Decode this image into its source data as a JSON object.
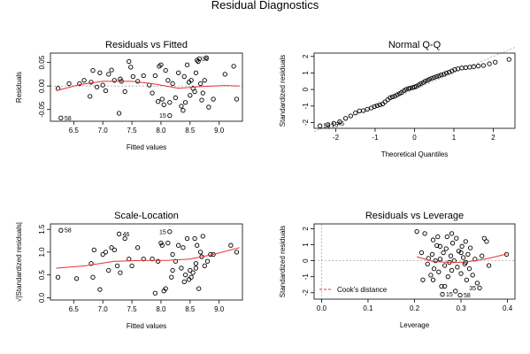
{
  "main_title": "Residual Diagnostics",
  "chart_data": [
    {
      "id": "rvf",
      "type": "scatter",
      "title": "Residuals vs Fitted",
      "xlabel": "Fitted values",
      "ylabel": "Residuals",
      "xlim": [
        6.1,
        9.4
      ],
      "ylim": [
        -0.075,
        0.07
      ],
      "xticks": [
        6.5,
        7.0,
        7.5,
        8.0,
        8.5,
        9.0
      ],
      "xtick_labels": [
        "6.5",
        "7.0",
        "7.5",
        "8.0",
        "8.5",
        "9.0"
      ],
      "yticks": [
        -0.05,
        0.0,
        0.05
      ],
      "ytick_labels": [
        "-0.05",
        "0.00",
        "0.05"
      ],
      "points": [
        [
          6.23,
          -0.005
        ],
        [
          6.42,
          0.005
        ],
        [
          6.6,
          0.005
        ],
        [
          6.68,
          0.012
        ],
        [
          6.78,
          -0.022
        ],
        [
          6.8,
          0.008
        ],
        [
          6.83,
          0.033
        ],
        [
          6.9,
          -0.002
        ],
        [
          6.95,
          0.028
        ],
        [
          7.0,
          0.002
        ],
        [
          7.05,
          -0.01
        ],
        [
          7.1,
          0.025
        ],
        [
          7.15,
          0.034
        ],
        [
          7.2,
          0.012
        ],
        [
          7.28,
          -0.058
        ],
        [
          7.3,
          0.015
        ],
        [
          7.32,
          0.01
        ],
        [
          7.38,
          -0.012
        ],
        [
          7.45,
          0.052
        ],
        [
          7.48,
          0.04
        ],
        [
          7.52,
          0.02
        ],
        [
          7.6,
          0.01
        ],
        [
          7.7,
          0.022
        ],
        [
          7.8,
          0.002
        ],
        [
          7.85,
          -0.015
        ],
        [
          7.9,
          0.022
        ],
        [
          7.95,
          -0.033
        ],
        [
          7.97,
          0.042
        ],
        [
          8.0,
          0.045
        ],
        [
          8.02,
          -0.028
        ],
        [
          8.05,
          -0.04
        ],
        [
          8.08,
          0.033
        ],
        [
          8.12,
          0.012
        ],
        [
          8.15,
          -0.035
        ],
        [
          8.2,
          0.005
        ],
        [
          8.25,
          -0.025
        ],
        [
          8.3,
          0.028
        ],
        [
          8.35,
          -0.043
        ],
        [
          8.38,
          -0.052
        ],
        [
          8.4,
          0.02
        ],
        [
          8.42,
          -0.035
        ],
        [
          8.45,
          0.045
        ],
        [
          8.48,
          0.008
        ],
        [
          8.5,
          -0.02
        ],
        [
          8.52,
          0.012
        ],
        [
          8.55,
          -0.005
        ],
        [
          8.58,
          -0.012
        ],
        [
          8.6,
          0.028
        ],
        [
          8.62,
          0.055
        ],
        [
          8.64,
          0.052
        ],
        [
          8.66,
          0.058
        ],
        [
          8.68,
          0.005
        ],
        [
          8.7,
          -0.03
        ],
        [
          8.72,
          -0.015
        ],
        [
          8.75,
          0.012
        ],
        [
          8.78,
          0.06
        ],
        [
          8.82,
          -0.045
        ],
        [
          8.9,
          -0.028
        ],
        [
          9.1,
          0.025
        ],
        [
          9.25,
          0.042
        ],
        [
          9.3,
          -0.028
        ],
        [
          8.15,
          -0.063
        ],
        [
          6.28,
          -0.068
        ]
      ],
      "smooth": [
        [
          6.2,
          -0.01
        ],
        [
          6.6,
          0.003
        ],
        [
          7.0,
          0.01
        ],
        [
          7.5,
          0.01
        ],
        [
          7.9,
          0.004
        ],
        [
          8.3,
          -0.005
        ],
        [
          8.7,
          -0.001
        ],
        [
          9.1,
          0.001
        ],
        [
          9.35,
          0.0
        ]
      ],
      "annotations": [
        {
          "x": 8.15,
          "y": -0.063,
          "text": "15",
          "side": "left"
        },
        {
          "x": 6.28,
          "y": -0.068,
          "text": "58",
          "side": "right"
        },
        {
          "x": 8.64,
          "y": 0.058,
          "text": "35",
          "side": "right"
        }
      ],
      "hline": 0
    },
    {
      "id": "qq",
      "type": "scatter",
      "title": "Normal Q-Q",
      "xlabel": "Theoretical Quantiles",
      "ylabel": "Standardized residuals",
      "xlim": [
        -2.55,
        2.55
      ],
      "ylim": [
        -2.35,
        2.2
      ],
      "xticks": [
        -2,
        -1,
        0,
        1,
        2
      ],
      "xtick_labels": [
        "-2",
        "-1",
        "0",
        "1",
        "2"
      ],
      "yticks": [
        -2,
        -1,
        0,
        1,
        2
      ],
      "ytick_labels": [
        "-2",
        "-1",
        "0",
        "1",
        "2"
      ],
      "points": [
        [
          -2.4,
          -2.2
        ],
        [
          -2.2,
          -2.13
        ],
        [
          -2.05,
          -2.05
        ],
        [
          -1.9,
          -1.95
        ],
        [
          -1.75,
          -1.75
        ],
        [
          -1.62,
          -1.6
        ],
        [
          -1.5,
          -1.42
        ],
        [
          -1.4,
          -1.3
        ],
        [
          -1.3,
          -1.28
        ],
        [
          -1.2,
          -1.2
        ],
        [
          -1.1,
          -1.12
        ],
        [
          -1.02,
          -1.03
        ],
        [
          -0.95,
          -0.98
        ],
        [
          -0.88,
          -0.93
        ],
        [
          -0.81,
          -0.88
        ],
        [
          -0.75,
          -0.75
        ],
        [
          -0.68,
          -0.62
        ],
        [
          -0.62,
          -0.5
        ],
        [
          -0.56,
          -0.45
        ],
        [
          -0.5,
          -0.4
        ],
        [
          -0.44,
          -0.32
        ],
        [
          -0.38,
          -0.25
        ],
        [
          -0.33,
          -0.18
        ],
        [
          -0.27,
          -0.08
        ],
        [
          -0.22,
          0.0
        ],
        [
          -0.16,
          0.05
        ],
        [
          -0.11,
          0.08
        ],
        [
          -0.05,
          0.12
        ],
        [
          0.0,
          0.15
        ],
        [
          0.05,
          0.2
        ],
        [
          0.11,
          0.28
        ],
        [
          0.16,
          0.35
        ],
        [
          0.22,
          0.42
        ],
        [
          0.27,
          0.5
        ],
        [
          0.33,
          0.55
        ],
        [
          0.38,
          0.62
        ],
        [
          0.44,
          0.68
        ],
        [
          0.5,
          0.72
        ],
        [
          0.56,
          0.78
        ],
        [
          0.62,
          0.82
        ],
        [
          0.68,
          0.88
        ],
        [
          0.75,
          0.92
        ],
        [
          0.81,
          1.0
        ],
        [
          0.88,
          1.05
        ],
        [
          0.95,
          1.12
        ],
        [
          1.02,
          1.2
        ],
        [
          1.1,
          1.25
        ],
        [
          1.2,
          1.3
        ],
        [
          1.3,
          1.32
        ],
        [
          1.4,
          1.35
        ],
        [
          1.5,
          1.38
        ],
        [
          1.62,
          1.42
        ],
        [
          1.75,
          1.45
        ],
        [
          1.9,
          1.55
        ],
        [
          2.05,
          1.65
        ],
        [
          2.4,
          1.82
        ]
      ],
      "refline": [
        [
          -2.55,
          -2.55
        ],
        [
          2.55,
          2.55
        ]
      ],
      "annotations": [
        {
          "x": -2.4,
          "y": -2.2,
          "text": "58",
          "side": "right"
        },
        {
          "x": -2.2,
          "y": -2.13,
          "text": "15",
          "side": "right"
        },
        {
          "x": -2.05,
          "y": -2.05,
          "text": "46",
          "side": "right"
        }
      ]
    },
    {
      "id": "sl",
      "type": "scatter",
      "title": "Scale-Location",
      "xlabel": "Fitted values",
      "ylabel": "√|Standardized residuals|",
      "xlim": [
        6.1,
        9.4
      ],
      "ylim": [
        -0.05,
        1.62
      ],
      "xticks": [
        6.5,
        7.0,
        7.5,
        8.0,
        8.5,
        9.0
      ],
      "xtick_labels": [
        "6.5",
        "7.0",
        "7.5",
        "8.0",
        "8.5",
        "9.0"
      ],
      "yticks": [
        0.0,
        0.5,
        1.0,
        1.5
      ],
      "ytick_labels": [
        "0.0",
        "0.5",
        "1.0",
        "1.5"
      ],
      "points": [
        [
          6.23,
          0.45
        ],
        [
          6.28,
          1.48
        ],
        [
          6.55,
          0.42
        ],
        [
          6.8,
          0.75
        ],
        [
          6.83,
          0.45
        ],
        [
          6.85,
          1.05
        ],
        [
          6.95,
          0.18
        ],
        [
          7.0,
          0.95
        ],
        [
          7.05,
          1.0
        ],
        [
          7.1,
          0.6
        ],
        [
          7.15,
          1.1
        ],
        [
          7.2,
          1.05
        ],
        [
          7.25,
          0.7
        ],
        [
          7.28,
          1.4
        ],
        [
          7.3,
          0.55
        ],
        [
          7.38,
          1.3
        ],
        [
          7.45,
          0.85
        ],
        [
          7.5,
          0.7
        ],
        [
          7.6,
          1.1
        ],
        [
          7.7,
          0.85
        ],
        [
          7.85,
          0.85
        ],
        [
          7.9,
          0.1
        ],
        [
          7.95,
          0.8
        ],
        [
          8.0,
          1.2
        ],
        [
          8.02,
          1.15
        ],
        [
          8.05,
          0.15
        ],
        [
          8.08,
          0.2
        ],
        [
          8.12,
          1.2
        ],
        [
          8.15,
          1.45
        ],
        [
          8.18,
          0.45
        ],
        [
          8.2,
          0.95
        ],
        [
          8.25,
          0.8
        ],
        [
          8.3,
          1.15
        ],
        [
          8.35,
          0.65
        ],
        [
          8.38,
          1.1
        ],
        [
          8.4,
          0.35
        ],
        [
          8.42,
          0.5
        ],
        [
          8.45,
          1.3
        ],
        [
          8.48,
          0.4
        ],
        [
          8.5,
          0.6
        ],
        [
          8.52,
          0.45
        ],
        [
          8.55,
          0.55
        ],
        [
          8.58,
          1.3
        ],
        [
          8.6,
          0.65
        ],
        [
          8.62,
          1.15
        ],
        [
          8.65,
          0.2
        ],
        [
          8.68,
          1.0
        ],
        [
          8.7,
          0.9
        ],
        [
          8.72,
          1.35
        ],
        [
          8.75,
          0.7
        ],
        [
          8.8,
          0.8
        ],
        [
          8.85,
          0.95
        ],
        [
          8.9,
          0.95
        ],
        [
          9.2,
          1.15
        ],
        [
          9.3,
          1.0
        ],
        [
          8.6,
          0.75
        ],
        [
          8.2,
          0.6
        ]
      ],
      "smooth": [
        [
          6.2,
          0.65
        ],
        [
          6.7,
          0.7
        ],
        [
          7.2,
          0.8
        ],
        [
          7.7,
          0.82
        ],
        [
          8.1,
          0.82
        ],
        [
          8.5,
          0.85
        ],
        [
          8.9,
          0.95
        ],
        [
          9.35,
          1.1
        ]
      ],
      "annotations": [
        {
          "x": 6.28,
          "y": 1.48,
          "text": "58",
          "side": "right"
        },
        {
          "x": 7.28,
          "y": 1.4,
          "text": "46",
          "side": "right"
        },
        {
          "x": 8.15,
          "y": 1.45,
          "text": "15",
          "side": "left"
        }
      ]
    },
    {
      "id": "rvl",
      "type": "scatter",
      "title": "Residuals vs Leverage",
      "xlabel": "Leverage",
      "ylabel": "Standardized residuals",
      "xlim": [
        -0.016,
        0.416
      ],
      "ylim": [
        -2.4,
        2.3
      ],
      "xticks": [
        0.0,
        0.1,
        0.2,
        0.3,
        0.4
      ],
      "xtick_labels": [
        "0.0",
        "0.1",
        "0.2",
        "0.3",
        "0.4"
      ],
      "yticks": [
        -2,
        -1,
        0,
        1,
        2
      ],
      "ytick_labels": [
        "-2",
        "-1",
        "0",
        "1",
        "2"
      ],
      "points": [
        [
          0.205,
          1.82
        ],
        [
          0.215,
          0.5
        ],
        [
          0.218,
          -1.2
        ],
        [
          0.222,
          1.7
        ],
        [
          0.228,
          -0.2
        ],
        [
          0.23,
          0.15
        ],
        [
          0.235,
          -0.9
        ],
        [
          0.238,
          0.4
        ],
        [
          0.24,
          1.3
        ],
        [
          0.242,
          -0.5
        ],
        [
          0.245,
          0.0
        ],
        [
          0.248,
          0.95
        ],
        [
          0.25,
          1.5
        ],
        [
          0.252,
          -0.7
        ],
        [
          0.255,
          0.1
        ],
        [
          0.258,
          -1.6
        ],
        [
          0.26,
          -2.1
        ],
        [
          0.262,
          0.5
        ],
        [
          0.265,
          -0.3
        ],
        [
          0.268,
          0.75
        ],
        [
          0.27,
          1.5
        ],
        [
          0.272,
          -1.0
        ],
        [
          0.275,
          -0.1
        ],
        [
          0.278,
          0.3
        ],
        [
          0.28,
          -0.6
        ],
        [
          0.282,
          1.1
        ],
        [
          0.285,
          0.0
        ],
        [
          0.288,
          -1.9
        ],
        [
          0.29,
          1.4
        ],
        [
          0.292,
          -0.4
        ],
        [
          0.295,
          0.6
        ],
        [
          0.298,
          -2.15
        ],
        [
          0.3,
          -0.8
        ],
        [
          0.302,
          0.9
        ],
        [
          0.305,
          0.2
        ],
        [
          0.308,
          -0.2
        ],
        [
          0.31,
          1.2
        ],
        [
          0.312,
          -1.2
        ],
        [
          0.315,
          0.4
        ],
        [
          0.318,
          -0.5
        ],
        [
          0.32,
          0.8
        ],
        [
          0.325,
          -0.9
        ],
        [
          0.33,
          0.1
        ],
        [
          0.335,
          -1.4
        ],
        [
          0.34,
          -1.7
        ],
        [
          0.345,
          0.3
        ],
        [
          0.35,
          1.4
        ],
        [
          0.355,
          1.2
        ],
        [
          0.36,
          -0.3
        ],
        [
          0.398,
          0.4
        ],
        [
          0.265,
          -1.6
        ],
        [
          0.3,
          0.5
        ],
        [
          0.24,
          -1.2
        ],
        [
          0.28,
          1.7
        ],
        [
          0.31,
          -0.1
        ],
        [
          0.255,
          0.9
        ]
      ],
      "smooth": [
        [
          0.205,
          0.25
        ],
        [
          0.24,
          -0.05
        ],
        [
          0.27,
          -0.1
        ],
        [
          0.3,
          -0.1
        ],
        [
          0.33,
          0.0
        ],
        [
          0.36,
          0.15
        ],
        [
          0.398,
          0.42
        ]
      ],
      "annotations": [
        {
          "x": 0.26,
          "y": -2.1,
          "text": "15",
          "side": "right"
        },
        {
          "x": 0.298,
          "y": -2.15,
          "text": "58",
          "side": "right"
        },
        {
          "x": 0.34,
          "y": -1.7,
          "text": "35",
          "side": "left"
        }
      ],
      "hline": 0,
      "vline": 0,
      "legend_text": "Cook's distance",
      "legend_placement": "bottom-left"
    }
  ]
}
